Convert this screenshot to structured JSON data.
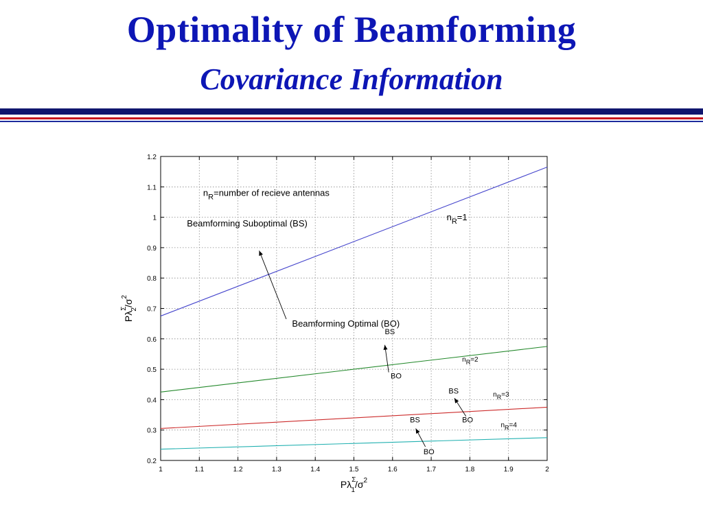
{
  "slide": {
    "title": "Optimality of Beamforming",
    "subtitle": "Covariance Information",
    "colors": {
      "title": "#0d16b5",
      "rule_navy": "#10166e",
      "rule_red": "#c8161d",
      "rule_blue": "#1e2a9c"
    }
  },
  "chart_data": {
    "type": "line",
    "x_ticks": [
      "1",
      "1.1",
      "1.2",
      "1.3",
      "1.4",
      "1.5",
      "1.6",
      "1.7",
      "1.8",
      "1.9",
      "2"
    ],
    "y_ticks": [
      "0.2",
      "0.3",
      "0.4",
      "0.5",
      "0.6",
      "0.7",
      "0.8",
      "0.9",
      "1",
      "1.1",
      "1.2"
    ],
    "xlim": [
      1,
      2
    ],
    "ylim": [
      0.2,
      1.2
    ],
    "grid": true,
    "xlabel": {
      "base": "Pλ",
      "sup": "Σ",
      "sub": "1",
      "rest": "/σ",
      "sup2": "2"
    },
    "ylabel": {
      "base": "Pλ",
      "sup": "Σ",
      "sub": "2",
      "rest": "/σ",
      "sup2": "2"
    },
    "series": [
      {
        "color": "#4444cc",
        "x": [
          1,
          2
        ],
        "y": [
          0.675,
          1.165
        ]
      },
      {
        "color": "#22882a",
        "x": [
          1,
          2
        ],
        "y": [
          0.425,
          0.575
        ]
      },
      {
        "color": "#cc2a2a",
        "x": [
          1,
          2
        ],
        "y": [
          0.305,
          0.375
        ]
      },
      {
        "color": "#20b0b0",
        "x": [
          1,
          2
        ],
        "y": [
          0.237,
          0.275
        ]
      }
    ],
    "annotations": {
      "nr_definition": {
        "main": "n",
        "sub": "R",
        "rest": "=number of recieve antennas"
      },
      "bs_label": "Beamforming Suboptimal (BS)",
      "bo_label": "Beamforming Optimal (BO)",
      "series_labels": [
        {
          "main": "n",
          "sub": "R",
          "rest": "=1"
        },
        {
          "main": "n",
          "sub": "R",
          "rest": "=2"
        },
        {
          "main": "n",
          "sub": "R",
          "rest": "=3"
        },
        {
          "main": "n",
          "sub": "R",
          "rest": "=4"
        }
      ],
      "small_labels": [
        {
          "text": "BS",
          "x": 1.58,
          "y": 0.615
        },
        {
          "text": "BO",
          "x": 1.595,
          "y": 0.47
        },
        {
          "text": "BS",
          "x": 1.745,
          "y": 0.42
        },
        {
          "text": "BO",
          "x": 1.78,
          "y": 0.325
        },
        {
          "text": "BS",
          "x": 1.645,
          "y": 0.325
        },
        {
          "text": "BO",
          "x": 1.68,
          "y": 0.22
        }
      ]
    }
  }
}
